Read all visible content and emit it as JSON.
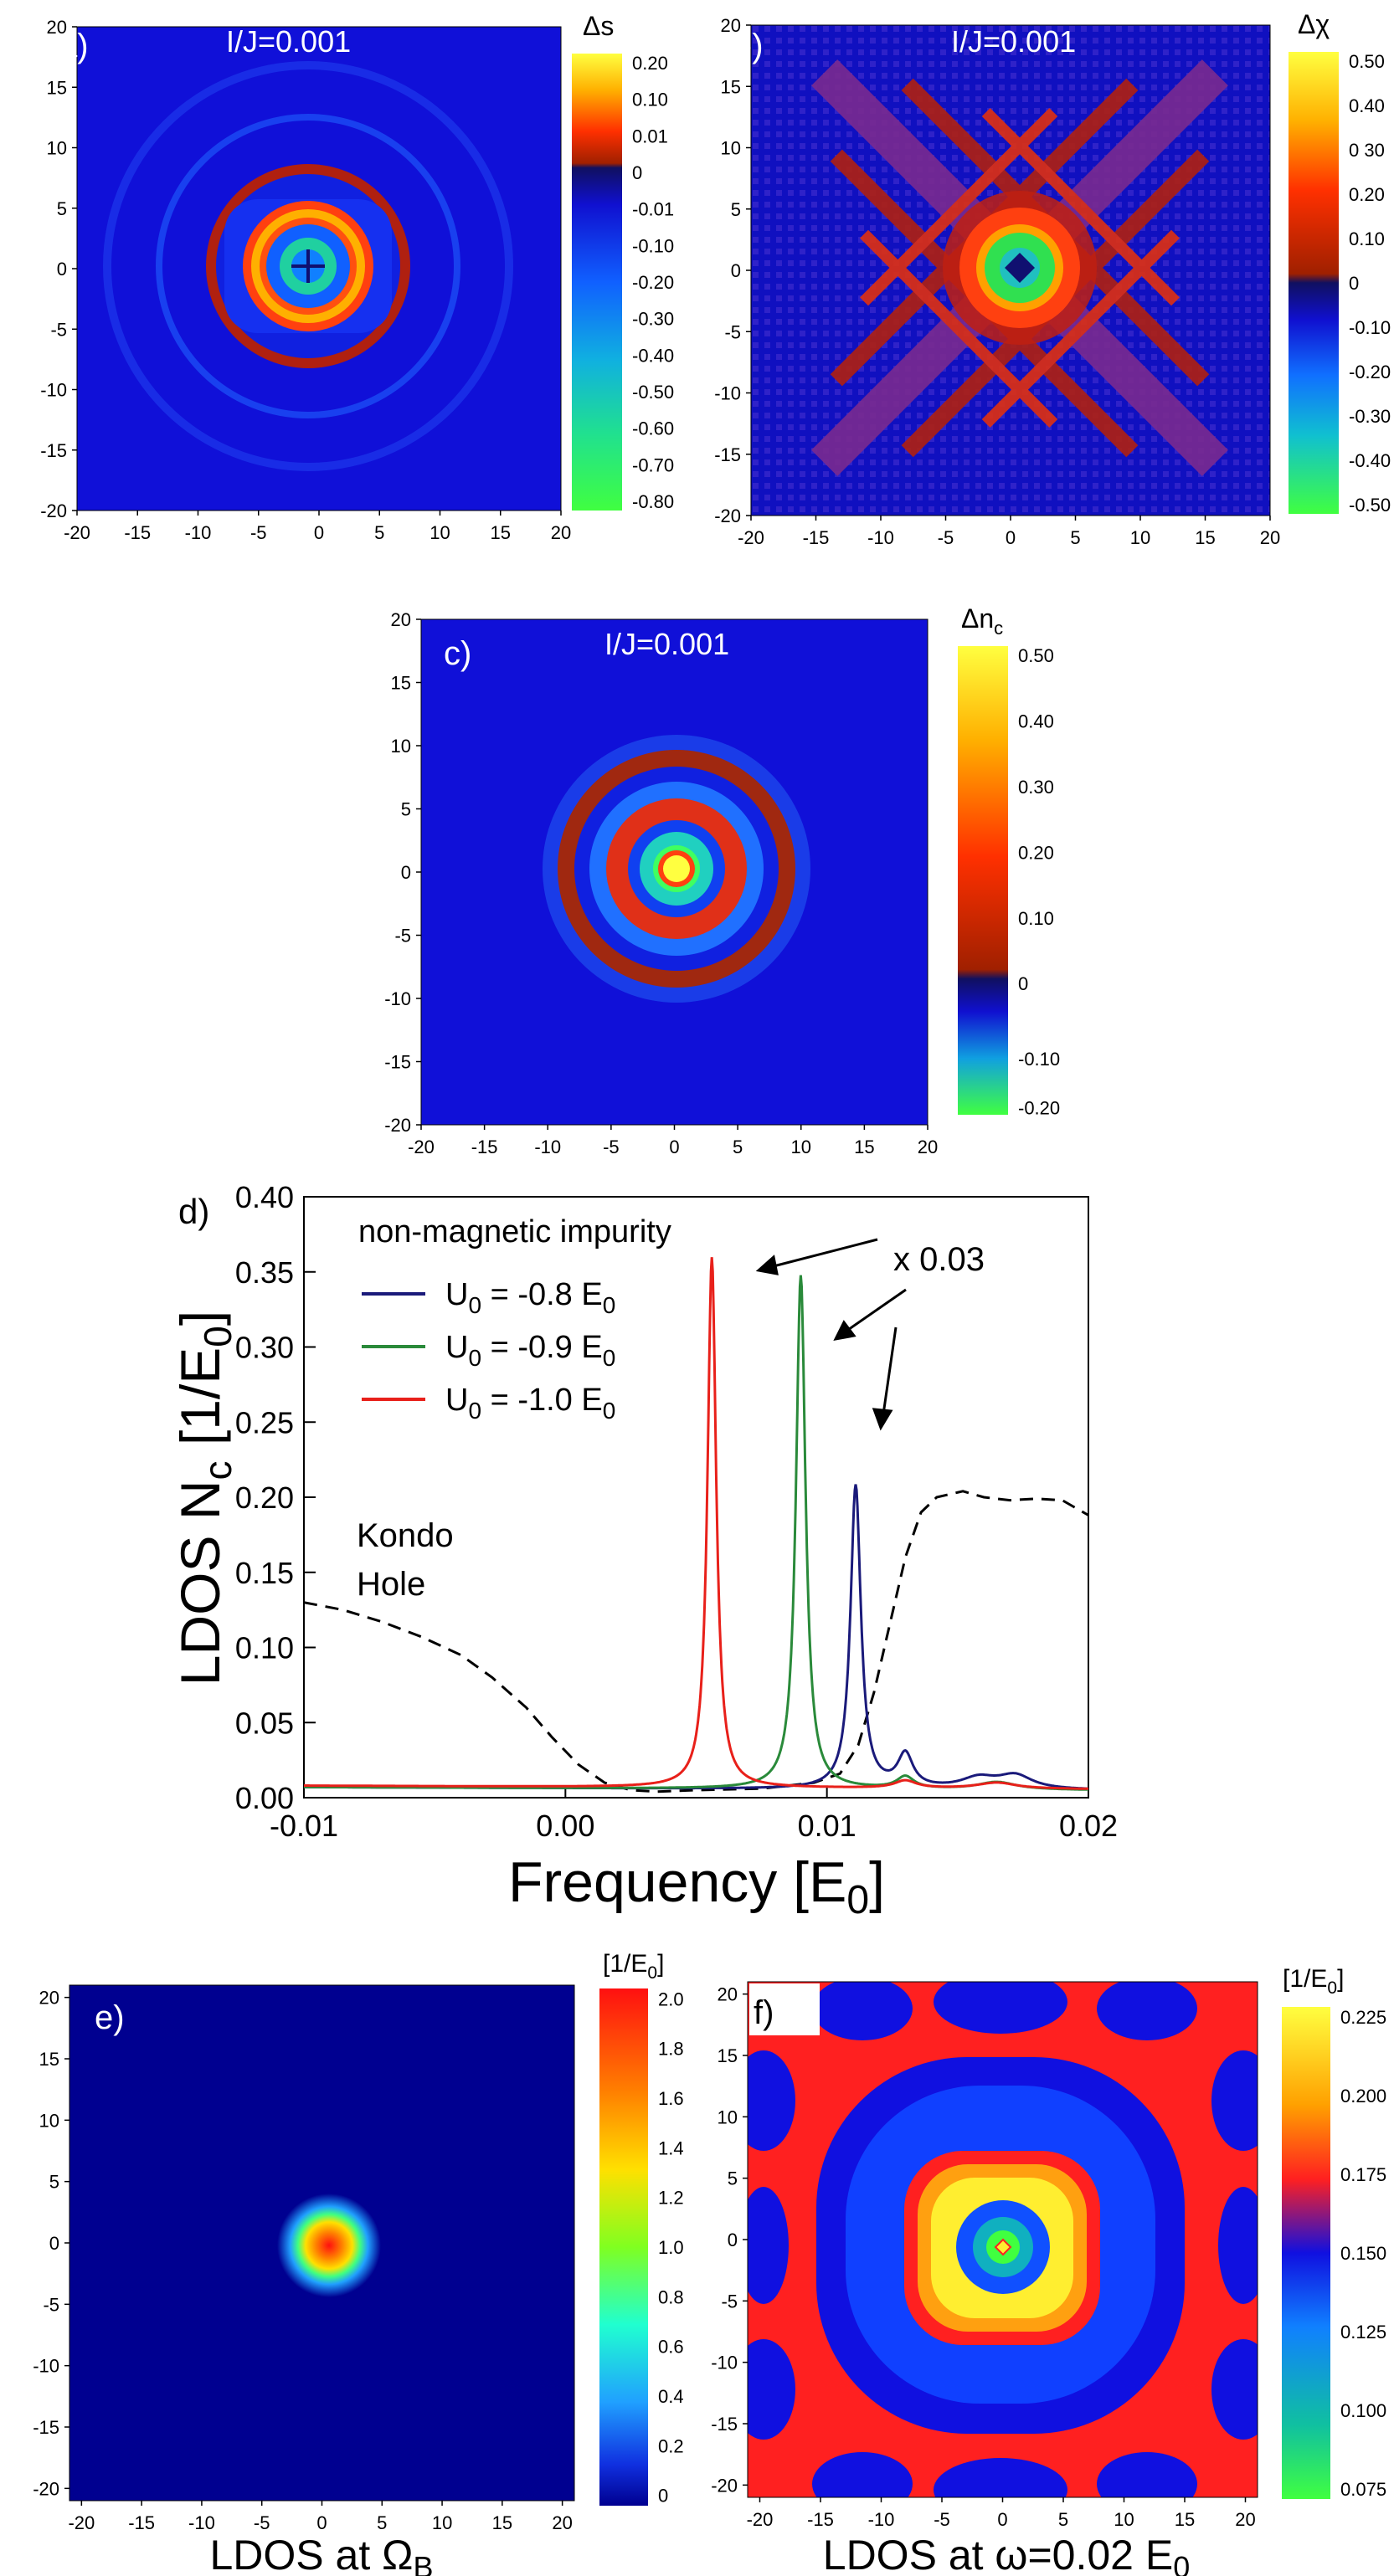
{
  "chart_data": [
    {
      "type": "heatmap",
      "panel_label": "a)",
      "title": "I/J=0.001",
      "colorbar_title": "Δs",
      "xticks": [
        "-20",
        "-15",
        "-10",
        "-5",
        "0",
        "5",
        "10",
        "15",
        "20"
      ],
      "yticks": [
        "20",
        "15",
        "10",
        "5",
        "0",
        "-5",
        "-10",
        "-15",
        "-20"
      ],
      "xlim": [
        -20,
        20
      ],
      "ylim": [
        -20,
        20
      ],
      "colorbar_ticks": [
        "0.20",
        "0.10",
        "0.01",
        "0",
        "-0.01",
        "-0.10",
        "-0.20",
        "-0.30",
        "-0.40",
        "-0.50",
        "-0.60",
        "-0.70",
        "-0.80"
      ]
    },
    {
      "type": "heatmap",
      "panel_label": "b)",
      "title": "I/J=0.001",
      "colorbar_title": "Δχ",
      "xticks": [
        "-20",
        "-15",
        "-10",
        "-5",
        "0",
        "5",
        "10",
        "15",
        "20"
      ],
      "yticks": [
        "20",
        "15",
        "10",
        "5",
        "0",
        "-5",
        "-10",
        "-15",
        "-20"
      ],
      "xlim": [
        -20,
        20
      ],
      "ylim": [
        -20,
        20
      ],
      "colorbar_ticks": [
        "0.50",
        "0.40",
        "0 30",
        "0.20",
        "0.10",
        "0",
        "-0.10",
        "-0.20",
        "-0.30",
        "-0.40",
        "-0.50"
      ]
    },
    {
      "type": "heatmap",
      "panel_label": "c)",
      "title": "I/J=0.001",
      "colorbar_title": "Δn",
      "colorbar_title_sub": "c",
      "xticks": [
        "-20",
        "-15",
        "-10",
        "-5",
        "0",
        "5",
        "10",
        "15",
        "20"
      ],
      "yticks": [
        "20",
        "15",
        "10",
        "5",
        "0",
        "-5",
        "-10",
        "-15",
        "-20"
      ],
      "xlim": [
        -20,
        20
      ],
      "ylim": [
        -20,
        20
      ],
      "colorbar_ticks": [
        "0.50",
        "0.40",
        "0.30",
        "0.20",
        "0.10",
        "0",
        "-0.10",
        "-0.20"
      ]
    },
    {
      "type": "line",
      "panel_label": "d)",
      "legend_title": "non-magnetic impurity",
      "xlabel": "Frequency [E",
      "xlabel_sub": "0",
      "xlabel_end": "]",
      "ylabel": "LDOS N",
      "ylabel_sub1": "c",
      "ylabel_mid": " [1/E",
      "ylabel_sub2": "0",
      "ylabel_end": "]",
      "xlim": [
        -0.01,
        0.02
      ],
      "ylim": [
        0,
        0.4
      ],
      "xticks": [
        -0.01,
        0.0,
        0.01,
        0.02
      ],
      "xtick_labels": [
        "-0.01",
        "0.00",
        "0.01",
        "0.02"
      ],
      "yticks": [
        0,
        0.05,
        0.1,
        0.15,
        0.2,
        0.25,
        0.3,
        0.35,
        0.4
      ],
      "ytick_labels": [
        "0.00",
        "0.05",
        "0.10",
        "0.15",
        "0.20",
        "0.25",
        "0.30",
        "0.35",
        "0.40"
      ],
      "annotation_scale": "x 0.03",
      "annotation_kondo_1": "Kondo",
      "annotation_kondo_2": "Hole",
      "series": [
        {
          "name": "U",
          "name_sub": "0",
          "name_rest": " = -0.8 E",
          "name_sub2": "0",
          "color": "#1a1a7a",
          "peak_x": 0.0111,
          "peak_y": 0.202,
          "width": 0.00024,
          "extra_peaks": [
            [
              0.013,
              0.022,
              0.00035
            ],
            [
              0.0158,
              0.007,
              0.0008
            ],
            [
              0.0172,
              0.009,
              0.0008
            ]
          ],
          "baseline": 0.007
        },
        {
          "name": "U",
          "name_sub": "0",
          "name_rest": " = -0.9 E",
          "name_sub2": "0",
          "color": "#2a8a3a",
          "peak_x": 0.009,
          "peak_y": 0.342,
          "width": 0.00022,
          "extra_peaks": [
            [
              0.013,
              0.008,
              0.0004
            ],
            [
              0.0165,
              0.005,
              0.0009
            ]
          ],
          "baseline": 0.007
        },
        {
          "name": "U",
          "name_sub": "0",
          "name_rest": " = -1.0 E",
          "name_sub2": "0",
          "color": "#e8201a",
          "peak_x": 0.0056,
          "peak_y": 0.353,
          "width": 0.0002,
          "extra_peaks": [
            [
              0.013,
              0.005,
              0.0005
            ],
            [
              0.0165,
              0.004,
              0.0009
            ]
          ],
          "baseline": 0.008
        }
      ],
      "kondo_hole": {
        "x": [
          -0.01,
          -0.0085,
          -0.007,
          -0.0055,
          -0.004,
          -0.0028,
          -0.0015,
          -0.0005,
          0.0005,
          0.0015,
          0.0025,
          0.0035,
          0.005,
          0.0075,
          0.0095,
          0.0105,
          0.0112,
          0.0118,
          0.0124,
          0.013,
          0.0136,
          0.0142,
          0.0152,
          0.016,
          0.017,
          0.018,
          0.019,
          0.0195,
          0.02
        ],
        "y": [
          0.13,
          0.125,
          0.117,
          0.107,
          0.095,
          0.08,
          0.06,
          0.04,
          0.022,
          0.01,
          0.005,
          0.004,
          0.005,
          0.006,
          0.01,
          0.016,
          0.035,
          0.07,
          0.115,
          0.16,
          0.19,
          0.2,
          0.204,
          0.2,
          0.198,
          0.199,
          0.198,
          0.193,
          0.188
        ]
      }
    },
    {
      "type": "heatmap",
      "panel_label": "e)",
      "colorbar_title": "[1/E",
      "colorbar_title_sub": "0",
      "colorbar_title_end": "]",
      "caption": "LDOS at Ω",
      "caption_sub": "B",
      "xticks": [
        "-20",
        "-15",
        "-10",
        "-5",
        "0",
        "5",
        "10",
        "15",
        "20"
      ],
      "yticks": [
        "20",
        "15",
        "10",
        "5",
        "0",
        "-5",
        "-10",
        "-15",
        "-20"
      ],
      "xlim": [
        -21,
        21
      ],
      "ylim": [
        -21,
        21
      ],
      "colorbar_ticks": [
        "2.0",
        "1.8",
        "1.6",
        "1.4",
        "1.2",
        "1.0",
        "0.8",
        "0.6",
        "0.4",
        "0.2",
        "0"
      ]
    },
    {
      "type": "heatmap",
      "panel_label": "f)",
      "colorbar_title": "[1/E",
      "colorbar_title_sub": "0",
      "colorbar_title_end": "]",
      "caption": "LDOS at ω=0.02 E",
      "caption_sub": "0",
      "xticks": [
        "-20",
        "-15",
        "-10",
        "-5",
        "0",
        "5",
        "10",
        "15",
        "20"
      ],
      "yticks": [
        "20",
        "15",
        "10",
        "5",
        "0",
        "-5",
        "-10",
        "-15",
        "-20"
      ],
      "xlim": [
        -21,
        21
      ],
      "ylim": [
        -21,
        21
      ],
      "colorbar_ticks": [
        "0.225",
        "0.200",
        "0.175",
        "0.150",
        "0.125",
        "0.100",
        "0.075"
      ]
    }
  ]
}
